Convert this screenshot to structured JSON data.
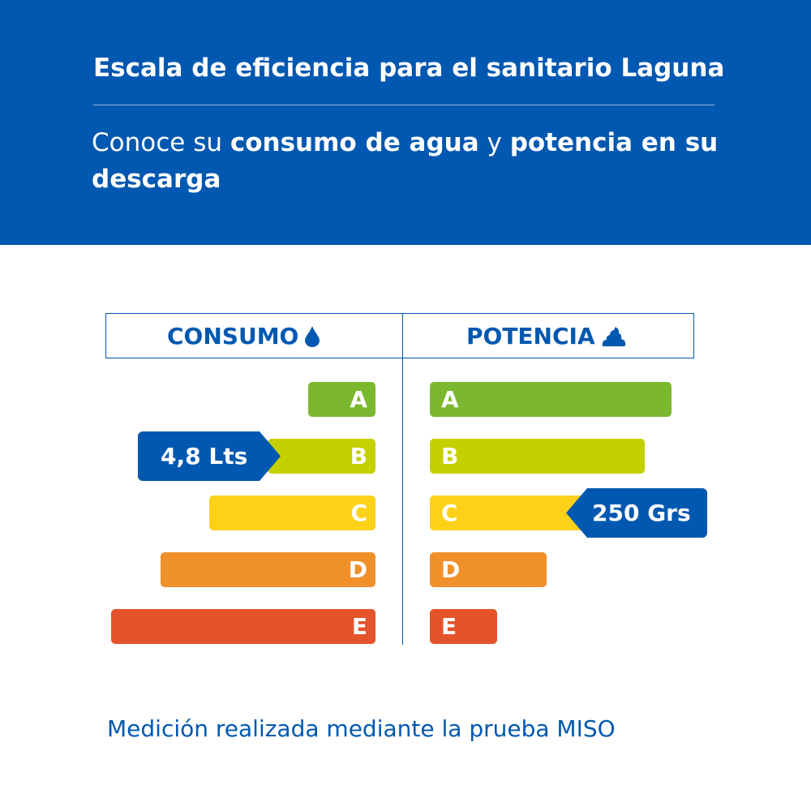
{
  "header": {
    "title": "Escala de eficiencia para el sanitario Laguna",
    "subtitle": {
      "part1": "Conoce su ",
      "bold1": "consumo de agua",
      "part2": " y ",
      "bold2": "potencia en su descarga"
    }
  },
  "columns": {
    "consumo": {
      "label": "CONSUMO",
      "icon": "water-drop-icon"
    },
    "potencia": {
      "label": "POTENCIA",
      "icon": "poop-icon"
    }
  },
  "grades": [
    "A",
    "B",
    "C",
    "D",
    "E"
  ],
  "colors": {
    "A": "#7cb82f",
    "B": "#c4d000",
    "C": "#fdd118",
    "D": "#f0902b",
    "E": "#e5532b",
    "brand": "#0058b0"
  },
  "consumo_result": {
    "grade": "B",
    "value": "4,8 Lts"
  },
  "potencia_result": {
    "grade": "C",
    "value": "250 Grs"
  },
  "footer": "Medición realizada mediante la prueba MISO"
}
